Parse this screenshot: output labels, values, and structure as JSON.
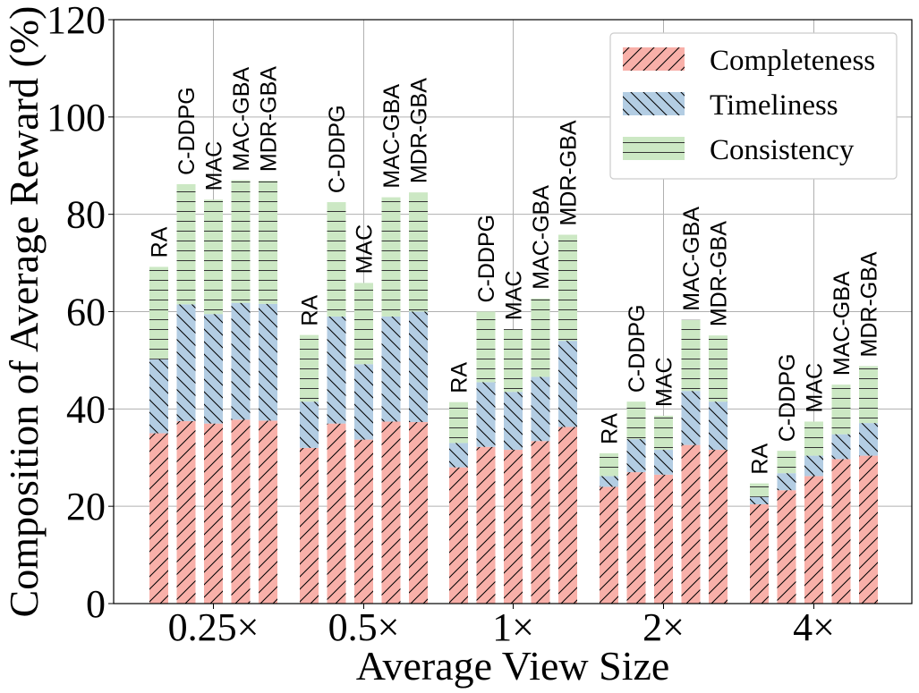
{
  "chart_data": {
    "type": "bar",
    "stacked": true,
    "xlabel": "Average View Size",
    "ylabel": "Composition of Average Reward (%)",
    "ylim": [
      0,
      120
    ],
    "yticks": [
      0,
      20,
      40,
      60,
      80,
      100,
      120
    ],
    "grid": true,
    "legend_position": "top-right",
    "categories": [
      "0.25×",
      "0.5×",
      "1×",
      "2×",
      "4×"
    ],
    "methods": [
      "RA",
      "C-DDPG",
      "MAC",
      "MAC-GBA",
      "MDR-GBA"
    ],
    "series": [
      {
        "name": "Completeness",
        "color": "#f8b0a9",
        "hatch": "forward-slash",
        "values": [
          [
            35,
            37.5,
            37,
            37.8,
            37.6
          ],
          [
            32,
            37,
            33.7,
            37.4,
            37.3
          ],
          [
            28,
            32.2,
            31.6,
            33.4,
            36.3
          ],
          [
            24,
            27,
            26.5,
            32.6,
            31.6
          ],
          [
            20.4,
            23.3,
            26.2,
            29.7,
            30.4
          ]
        ]
      },
      {
        "name": "Timeliness",
        "color": "#b3cde3",
        "hatch": "back-slash",
        "values": [
          [
            15.2,
            24,
            22.5,
            24,
            24
          ],
          [
            9.5,
            22,
            15.5,
            21.6,
            22.7
          ],
          [
            5,
            13.3,
            11.9,
            13.2,
            17.7
          ],
          [
            2.2,
            6.8,
            5.1,
            11.1,
            9.9
          ],
          [
            1.5,
            3.5,
            4.2,
            5.1,
            6.7
          ]
        ]
      },
      {
        "name": "Consistency",
        "color": "#cce8c4",
        "hatch": "horizontal",
        "values": [
          [
            19,
            24.7,
            23.5,
            25.2,
            25.3
          ],
          [
            13.7,
            23.5,
            16.7,
            24.5,
            24.5
          ],
          [
            8.4,
            14.5,
            12.9,
            16.1,
            21.8
          ],
          [
            4.7,
            7.7,
            7,
            14.6,
            13.6
          ],
          [
            2.8,
            4.6,
            7,
            10.2,
            11.7
          ]
        ]
      }
    ]
  }
}
